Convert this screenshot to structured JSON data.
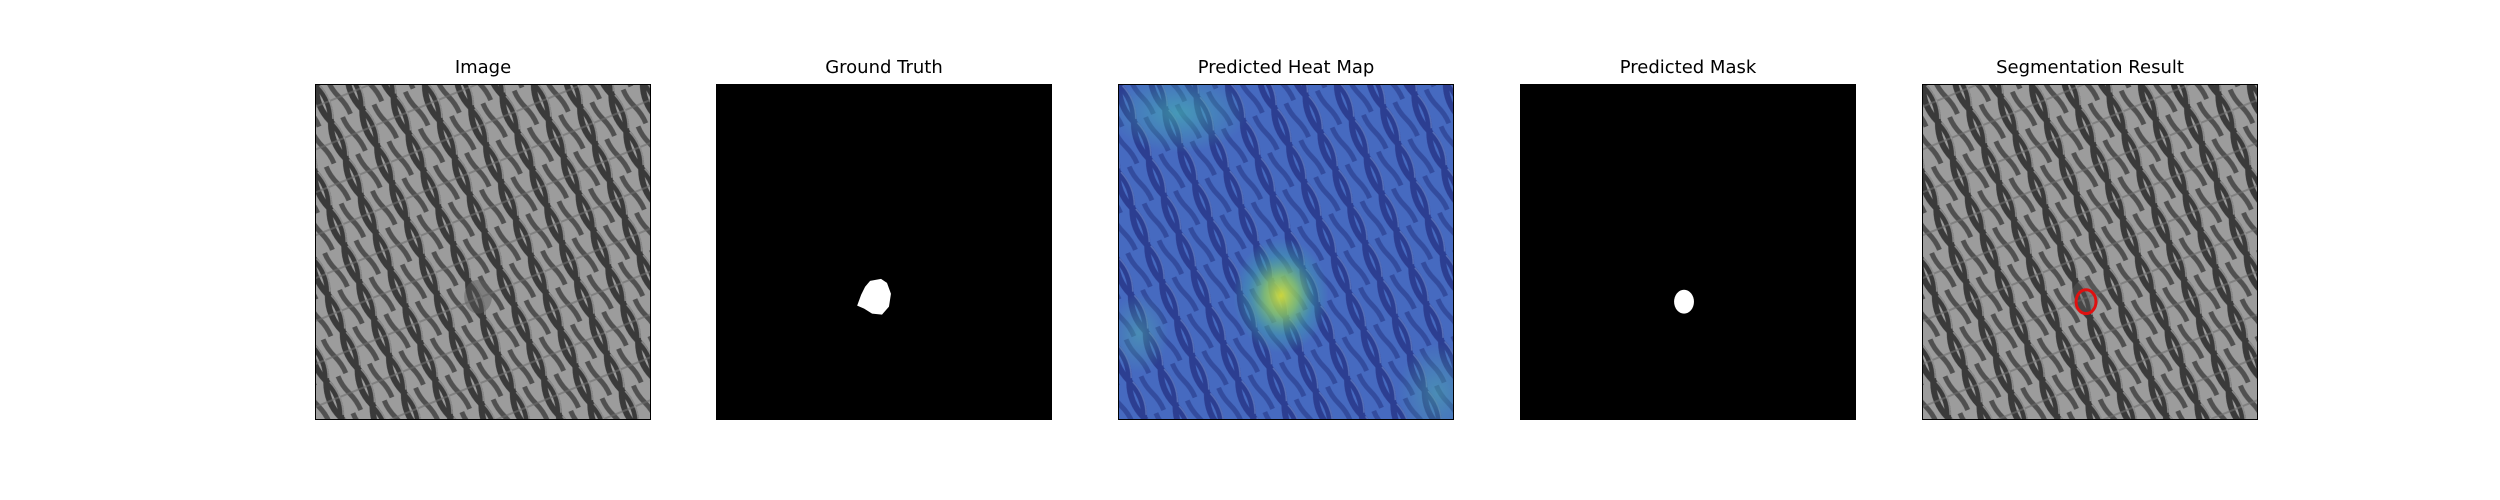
{
  "figure": {
    "panels": [
      {
        "title": "Image"
      },
      {
        "title": "Ground Truth"
      },
      {
        "title": "Predicted Heat Map"
      },
      {
        "title": "Predicted Mask"
      },
      {
        "title": "Segmentation Result"
      }
    ]
  },
  "colors": {
    "background": "#ffffff",
    "mesh_light": "#9a9a9a",
    "mesh_dark": "#3c3c3c",
    "mask_background": "#000000",
    "mask_foreground": "#ffffff",
    "heat_low": "#3a3fb0",
    "heat_mid": "#3fa6c8",
    "heat_high": "#d4de3a",
    "contour": "#e01010"
  }
}
